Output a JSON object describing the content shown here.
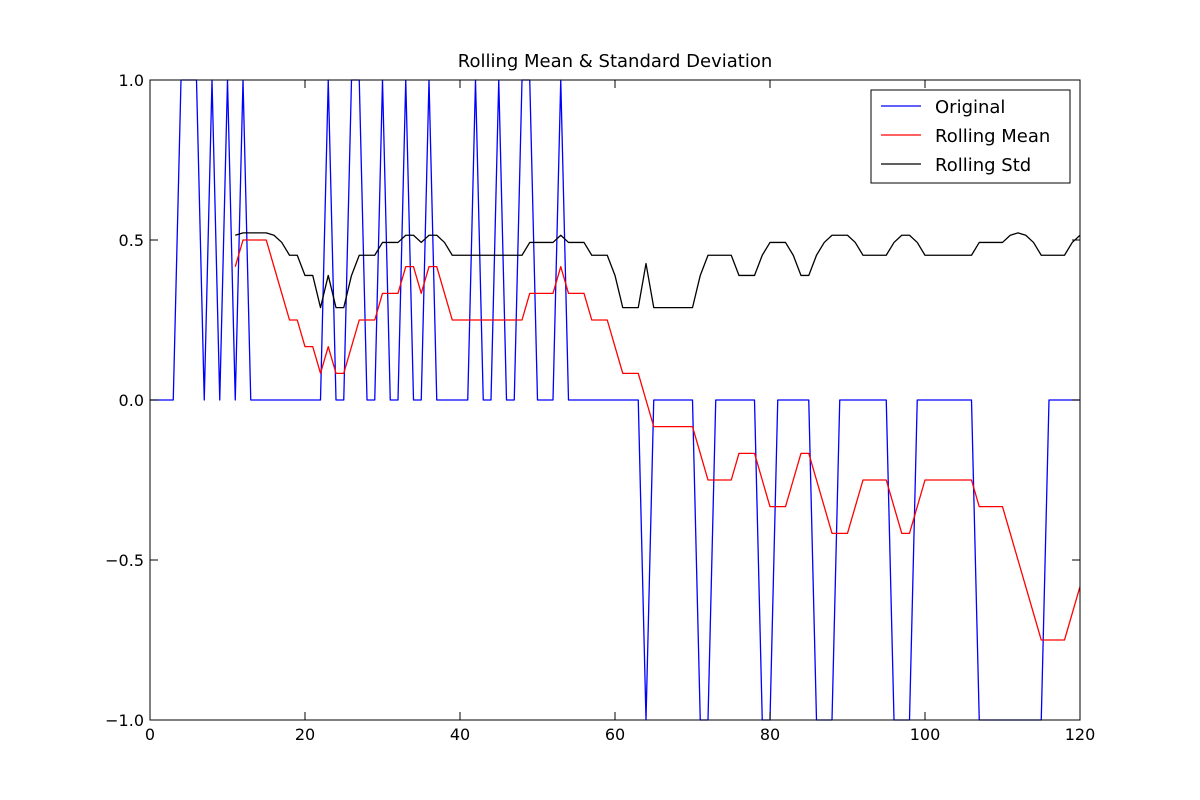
{
  "chart_data": {
    "type": "line",
    "title": "Rolling Mean & Standard Deviation",
    "x": [
      0,
      1,
      2,
      3,
      4,
      5,
      6,
      7,
      8,
      9,
      10,
      11,
      12,
      13,
      14,
      15,
      16,
      17,
      18,
      19,
      20,
      21,
      22,
      23,
      24,
      25,
      26,
      27,
      28,
      29,
      30,
      31,
      32,
      33,
      34,
      35,
      36,
      37,
      38,
      39,
      40,
      41,
      42,
      43,
      44,
      45,
      46,
      47,
      48,
      49,
      50,
      51,
      52,
      53,
      54,
      55,
      56,
      57,
      58,
      59,
      60,
      61,
      62,
      63,
      64,
      65,
      66,
      67,
      68,
      69,
      70,
      71,
      72,
      73,
      74,
      75,
      76,
      77,
      78,
      79,
      80,
      81,
      82,
      83,
      84,
      85,
      86,
      87,
      88,
      89,
      90,
      91,
      92,
      93,
      94,
      95,
      96,
      97,
      98,
      99,
      100,
      101,
      102,
      103,
      104,
      105,
      106,
      107,
      108,
      109,
      110,
      111,
      112,
      113,
      114,
      115,
      116,
      117,
      118,
      119,
      120
    ],
    "series": [
      {
        "name": "Original",
        "color": "#0000ff",
        "values": [
          0,
          0,
          0,
          0,
          1,
          1,
          1,
          0,
          1,
          0,
          1,
          0,
          1,
          0,
          0,
          0,
          0,
          0,
          0,
          0,
          0,
          0,
          0,
          1,
          0,
          0,
          1,
          1,
          0,
          0,
          1,
          0,
          0,
          1,
          0,
          0,
          1,
          0,
          0,
          0,
          0,
          0,
          1,
          0,
          0,
          1,
          0,
          0,
          1,
          1,
          0,
          0,
          0,
          1,
          0,
          0,
          0,
          0,
          0,
          0,
          0,
          0,
          0,
          0,
          -1,
          0,
          0,
          0,
          0,
          0,
          0,
          -1,
          -1,
          0,
          0,
          0,
          0,
          0,
          0,
          -1,
          -1,
          0,
          0,
          0,
          0,
          0,
          -1,
          -1,
          -1,
          0,
          0,
          0,
          0,
          0,
          0,
          0,
          -1,
          -1,
          -1,
          0,
          0,
          0,
          0,
          0,
          0,
          0,
          0,
          -1,
          -1,
          -1,
          -1,
          -1,
          -1,
          -1,
          -1,
          -1,
          0,
          0,
          0,
          0,
          0
        ]
      },
      {
        "name": "Rolling Mean",
        "color": "#ff0000",
        "values": [
          null,
          null,
          null,
          null,
          null,
          null,
          null,
          null,
          null,
          null,
          null,
          0.4167,
          0.5,
          0.5,
          0.5,
          0.5,
          0.4167,
          0.3333,
          0.25,
          0.25,
          0.1667,
          0.1667,
          0.0833,
          0.1667,
          0.0833,
          0.0833,
          0.1667,
          0.25,
          0.25,
          0.25,
          0.3333,
          0.3333,
          0.3333,
          0.4167,
          0.4167,
          0.3333,
          0.4167,
          0.4167,
          0.3333,
          0.25,
          0.25,
          0.25,
          0.25,
          0.25,
          0.25,
          0.25,
          0.25,
          0.25,
          0.25,
          0.3333,
          0.3333,
          0.3333,
          0.3333,
          0.4167,
          0.3333,
          0.3333,
          0.3333,
          0.25,
          0.25,
          0.25,
          0.1667,
          0.0833,
          0.0833,
          0.0833,
          0,
          -0.0833,
          -0.0833,
          -0.0833,
          -0.0833,
          -0.0833,
          -0.0833,
          -0.1667,
          -0.25,
          -0.25,
          -0.25,
          -0.25,
          -0.1667,
          -0.1667,
          -0.1667,
          -0.25,
          -0.3333,
          -0.3333,
          -0.3333,
          -0.25,
          -0.1667,
          -0.1667,
          -0.25,
          -0.3333,
          -0.4167,
          -0.4167,
          -0.4167,
          -0.3333,
          -0.25,
          -0.25,
          -0.25,
          -0.25,
          -0.3333,
          -0.4167,
          -0.4167,
          -0.3333,
          -0.25,
          -0.25,
          -0.25,
          -0.25,
          -0.25,
          -0.25,
          -0.25,
          -0.3333,
          -0.3333,
          -0.3333,
          -0.3333,
          -0.4167,
          -0.5,
          -0.5833,
          -0.6667,
          -0.75,
          -0.75,
          -0.75,
          -0.75,
          -0.6667,
          -0.5833
        ]
      },
      {
        "name": "Rolling Std",
        "color": "#000000",
        "values": [
          null,
          null,
          null,
          null,
          null,
          null,
          null,
          null,
          null,
          null,
          null,
          0.5149,
          0.5222,
          0.5222,
          0.5222,
          0.5222,
          0.5149,
          0.4924,
          0.4523,
          0.4523,
          0.3892,
          0.3892,
          0.2887,
          0.3892,
          0.2887,
          0.2887,
          0.3892,
          0.4523,
          0.4523,
          0.4523,
          0.4924,
          0.4924,
          0.4924,
          0.5149,
          0.5149,
          0.4924,
          0.5149,
          0.5149,
          0.4924,
          0.4523,
          0.4523,
          0.4523,
          0.4523,
          0.4523,
          0.4523,
          0.4523,
          0.4523,
          0.4523,
          0.4523,
          0.4924,
          0.4924,
          0.4924,
          0.4924,
          0.5149,
          0.4924,
          0.4924,
          0.4924,
          0.4523,
          0.4523,
          0.4523,
          0.3892,
          0.2887,
          0.2887,
          0.2887,
          0.4264,
          0.2887,
          0.2887,
          0.2887,
          0.2887,
          0.2887,
          0.2887,
          0.3892,
          0.4523,
          0.4523,
          0.4523,
          0.4523,
          0.3892,
          0.3892,
          0.3892,
          0.4523,
          0.4924,
          0.4924,
          0.4924,
          0.4523,
          0.3892,
          0.3892,
          0.4523,
          0.4924,
          0.5149,
          0.5149,
          0.5149,
          0.4924,
          0.4523,
          0.4523,
          0.4523,
          0.4523,
          0.4924,
          0.5149,
          0.5149,
          0.4924,
          0.4523,
          0.4523,
          0.4523,
          0.4523,
          0.4523,
          0.4523,
          0.4523,
          0.4924,
          0.4924,
          0.4924,
          0.4924,
          0.5149,
          0.5222,
          0.5149,
          0.4924,
          0.4523,
          0.4523,
          0.4523,
          0.4523,
          0.4924,
          0.5149
        ]
      }
    ],
    "xlim": [
      0,
      120
    ],
    "xticks": [
      0,
      20,
      40,
      60,
      80,
      100,
      120
    ],
    "ylim": [
      -1,
      1
    ],
    "yticks": [
      {
        "value": -1,
        "label": "−1.0"
      },
      {
        "value": -0.5,
        "label": "−0.5"
      },
      {
        "value": 0,
        "label": "0.0"
      },
      {
        "value": 0.5,
        "label": "0.5"
      },
      {
        "value": 1,
        "label": "1.0"
      }
    ],
    "grid": false,
    "legend": "upper right"
  }
}
